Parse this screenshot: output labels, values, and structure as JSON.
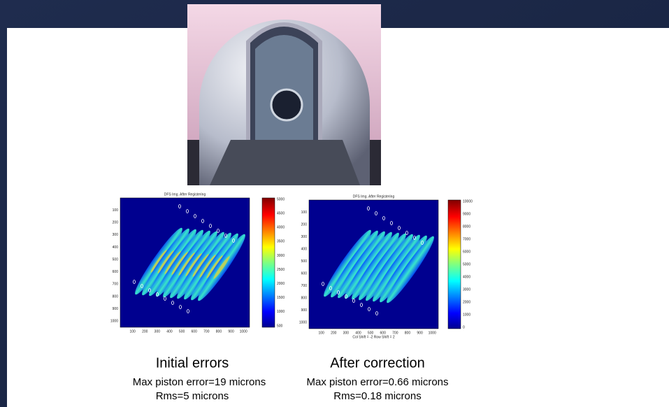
{
  "captions": [
    {
      "heading": "Initial errors",
      "lines": [
        "Max piston error=19 microns",
        "Rms=5 microns"
      ]
    },
    {
      "heading": "After correction",
      "lines": [
        "Max piston error=0.66 microns",
        "Rms=0.18 microns"
      ]
    }
  ],
  "plots": [
    {
      "title": "DFS Img. After Registering",
      "yticks": [
        "100",
        "200",
        "300",
        "400",
        "500",
        "600",
        "700",
        "800",
        "900",
        "1000"
      ],
      "xticks": [
        "100",
        "200",
        "300",
        "400",
        "500",
        "600",
        "700",
        "800",
        "900",
        "1000"
      ],
      "colorbar": [
        "5000",
        "4500",
        "4000",
        "3500",
        "3000",
        "2500",
        "2000",
        "1500",
        "1000",
        "500"
      ]
    },
    {
      "title": "DFS Img. After Registering",
      "yticks": [
        "100",
        "200",
        "300",
        "400",
        "500",
        "600",
        "700",
        "800",
        "900",
        "1000"
      ],
      "xticks": [
        "100",
        "200",
        "300",
        "400",
        "500",
        "600",
        "700",
        "800",
        "900",
        "1000"
      ],
      "xlabel": "Col Shift = -2  Row Shift = 2",
      "colorbar": [
        "10000",
        "9000",
        "8000",
        "7000",
        "6000",
        "5000",
        "4000",
        "3000",
        "2000",
        "1000",
        "0"
      ]
    }
  ]
}
